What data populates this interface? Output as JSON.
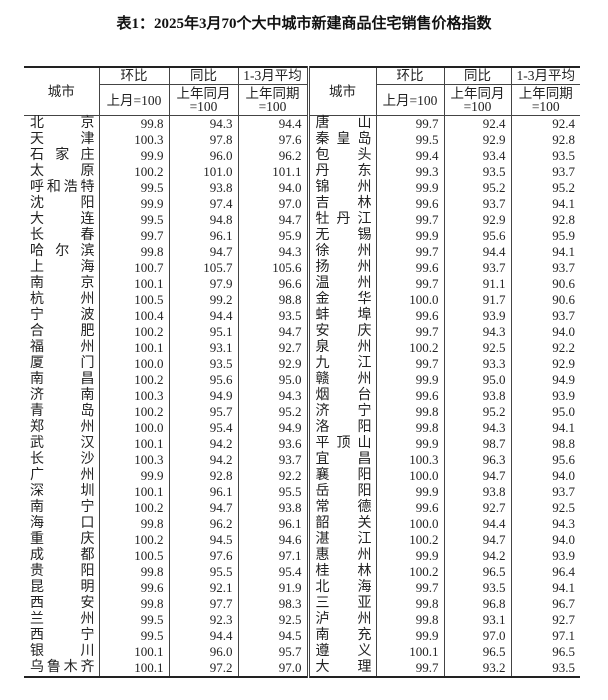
{
  "title": "表1：2025年3月70个大中城市新建商品住宅销售价格指数",
  "header": {
    "city": "城市",
    "mom": "环比",
    "yoy": "同比",
    "avg": "1-3月平均",
    "mom_base": "上月=100",
    "yoy_base_1": "上年同月",
    "yoy_base_2": "=100",
    "avg_base_1": "上年同期",
    "avg_base_2": "=100"
  },
  "left": [
    [
      "北京",
      "99.8",
      "94.3",
      "94.4"
    ],
    [
      "天津",
      "100.3",
      "97.8",
      "97.6"
    ],
    [
      "石家庄",
      "99.9",
      "96.0",
      "96.2"
    ],
    [
      "太原",
      "100.2",
      "101.0",
      "101.1"
    ],
    [
      "呼和浩特",
      "99.5",
      "93.8",
      "94.0"
    ],
    [
      "沈阳",
      "99.9",
      "97.4",
      "97.0"
    ],
    [
      "大连",
      "99.5",
      "94.8",
      "94.7"
    ],
    [
      "长春",
      "99.7",
      "96.1",
      "95.9"
    ],
    [
      "哈尔滨",
      "99.8",
      "94.7",
      "94.3"
    ],
    [
      "上海",
      "100.7",
      "105.7",
      "105.6"
    ],
    [
      "南京",
      "100.1",
      "97.9",
      "96.6"
    ],
    [
      "杭州",
      "100.5",
      "99.2",
      "98.8"
    ],
    [
      "宁波",
      "100.4",
      "94.4",
      "93.5"
    ],
    [
      "合肥",
      "100.2",
      "95.1",
      "94.7"
    ],
    [
      "福州",
      "100.1",
      "93.1",
      "92.7"
    ],
    [
      "厦门",
      "100.0",
      "93.5",
      "92.9"
    ],
    [
      "南昌",
      "100.2",
      "95.6",
      "95.0"
    ],
    [
      "济南",
      "100.3",
      "94.9",
      "94.3"
    ],
    [
      "青岛",
      "100.2",
      "95.7",
      "95.2"
    ],
    [
      "郑州",
      "100.0",
      "95.4",
      "94.9"
    ],
    [
      "武汉",
      "100.1",
      "94.2",
      "93.6"
    ],
    [
      "长沙",
      "100.3",
      "94.2",
      "93.7"
    ],
    [
      "广州",
      "99.9",
      "92.8",
      "92.2"
    ],
    [
      "深圳",
      "100.1",
      "96.1",
      "95.5"
    ],
    [
      "南宁",
      "100.2",
      "94.7",
      "93.8"
    ],
    [
      "海口",
      "99.8",
      "96.2",
      "96.1"
    ],
    [
      "重庆",
      "100.2",
      "94.5",
      "94.6"
    ],
    [
      "成都",
      "100.5",
      "97.6",
      "97.1"
    ],
    [
      "贵阳",
      "99.8",
      "95.5",
      "95.4"
    ],
    [
      "昆明",
      "99.6",
      "92.1",
      "91.9"
    ],
    [
      "西安",
      "99.8",
      "97.7",
      "98.3"
    ],
    [
      "兰州",
      "99.5",
      "92.3",
      "92.5"
    ],
    [
      "西宁",
      "99.5",
      "94.4",
      "94.5"
    ],
    [
      "银川",
      "100.1",
      "96.0",
      "95.7"
    ],
    [
      "乌鲁木齐",
      "100.1",
      "97.2",
      "97.0"
    ]
  ],
  "right": [
    [
      "唐山",
      "99.7",
      "92.4",
      "92.4"
    ],
    [
      "秦皇岛",
      "99.5",
      "92.9",
      "92.8"
    ],
    [
      "包头",
      "99.4",
      "93.4",
      "93.5"
    ],
    [
      "丹东",
      "99.3",
      "93.5",
      "93.7"
    ],
    [
      "锦州",
      "99.9",
      "95.2",
      "95.2"
    ],
    [
      "吉林",
      "99.6",
      "93.7",
      "94.1"
    ],
    [
      "牡丹江",
      "99.7",
      "92.9",
      "92.8"
    ],
    [
      "无锡",
      "99.9",
      "95.6",
      "95.9"
    ],
    [
      "徐州",
      "99.7",
      "94.4",
      "94.1"
    ],
    [
      "扬州",
      "99.6",
      "93.7",
      "93.7"
    ],
    [
      "温州",
      "99.7",
      "91.1",
      "90.6"
    ],
    [
      "金华",
      "100.0",
      "91.7",
      "90.6"
    ],
    [
      "蚌埠",
      "99.6",
      "93.9",
      "93.7"
    ],
    [
      "安庆",
      "99.7",
      "94.3",
      "94.0"
    ],
    [
      "泉州",
      "100.2",
      "92.5",
      "92.2"
    ],
    [
      "九江",
      "99.7",
      "93.3",
      "92.9"
    ],
    [
      "赣州",
      "99.9",
      "95.0",
      "94.9"
    ],
    [
      "烟台",
      "99.6",
      "93.8",
      "93.9"
    ],
    [
      "济宁",
      "99.8",
      "95.2",
      "95.0"
    ],
    [
      "洛阳",
      "99.8",
      "94.3",
      "94.1"
    ],
    [
      "平顶山",
      "99.9",
      "98.7",
      "98.8"
    ],
    [
      "宜昌",
      "100.3",
      "96.3",
      "95.6"
    ],
    [
      "襄阳",
      "100.0",
      "94.7",
      "94.0"
    ],
    [
      "岳阳",
      "99.9",
      "93.8",
      "93.7"
    ],
    [
      "常德",
      "99.6",
      "92.7",
      "92.5"
    ],
    [
      "韶关",
      "100.0",
      "94.4",
      "94.3"
    ],
    [
      "湛江",
      "100.2",
      "94.7",
      "94.0"
    ],
    [
      "惠州",
      "99.9",
      "94.2",
      "93.9"
    ],
    [
      "桂林",
      "100.2",
      "96.5",
      "96.4"
    ],
    [
      "北海",
      "99.7",
      "93.5",
      "94.1"
    ],
    [
      "三亚",
      "99.8",
      "96.8",
      "96.7"
    ],
    [
      "泸州",
      "99.8",
      "93.1",
      "92.7"
    ],
    [
      "南充",
      "99.9",
      "97.0",
      "97.1"
    ],
    [
      "遵义",
      "100.1",
      "96.5",
      "96.5"
    ],
    [
      "大理",
      "99.7",
      "93.2",
      "93.5"
    ]
  ]
}
